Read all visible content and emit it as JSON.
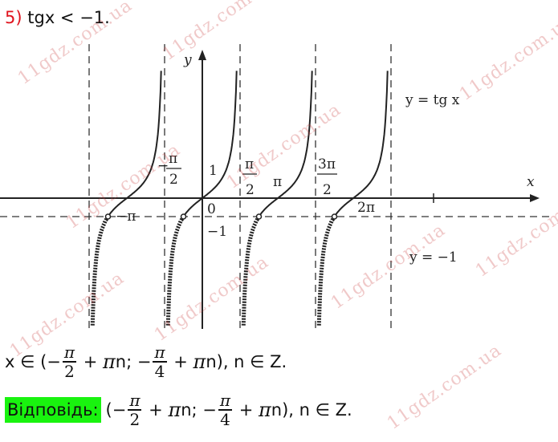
{
  "task": {
    "number": "5)",
    "inequality": "tgx < −1."
  },
  "graph": {
    "axis_x": "x",
    "axis_y": "y",
    "curve_label": "y = tg x",
    "line_label": "y = −1",
    "labels": {
      "neg_pi_half_num": "π",
      "neg_pi_half_den": "2",
      "neg_sign": "−",
      "one": "1",
      "zero": "0",
      "neg_one": "−1",
      "pi_half_num": "π",
      "pi_half_den": "2",
      "pi": "π",
      "three_pi_half_num": "3π",
      "three_pi_half_den": "2",
      "two_pi": "2π",
      "neg_pi": "−π"
    }
  },
  "solution": {
    "prefix": "x ∈ (−",
    "f1_num": "π",
    "f1_den": "2",
    "mid1": " + ",
    "pi": "π",
    "mid2": "n; −",
    "f2_num": "π",
    "f2_den": "4",
    "suffix": "n), n ∈ Z."
  },
  "answer": {
    "label": "Відповідь:",
    "prefix": "(−",
    "f1_num": "π",
    "f1_den": "2",
    "mid1": " + ",
    "pi": "π",
    "mid2": "n; −",
    "f2_num": "π",
    "f2_den": "4",
    "suffix": "n), n ∈ Z."
  },
  "watermark": "11gdz.com.ua"
}
